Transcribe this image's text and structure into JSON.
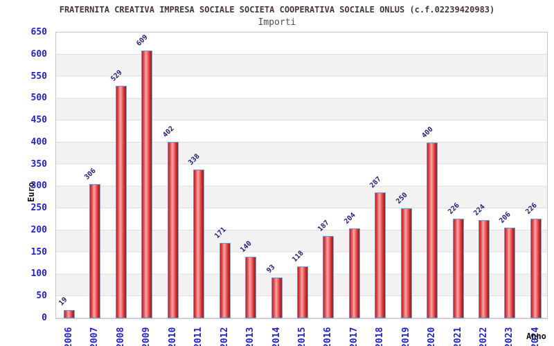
{
  "chart_data": {
    "type": "bar",
    "title": "FRATERNITA CREATIVA IMPRESA SOCIALE SOCIETA COOPERATIVA SOCIALE ONLUS (c.f.02239420983)",
    "subtitle": "Importi",
    "categories": [
      "2006",
      "2007",
      "2008",
      "2009",
      "2010",
      "2011",
      "2012",
      "2013",
      "2014",
      "2015",
      "2016",
      "2017",
      "2018",
      "2019",
      "2020",
      "2021",
      "2022",
      "2023",
      "2024"
    ],
    "values": [
      19,
      306,
      529,
      609,
      402,
      338,
      171,
      140,
      93,
      118,
      187,
      204,
      287,
      250,
      400,
      226,
      224,
      206,
      226
    ],
    "xlabel": "Anno",
    "ylabel": "Euro",
    "ylim": [
      0,
      650
    ],
    "ytick_step": 50,
    "grid": "horizontal, alternating gray bands every 50",
    "legend": "none",
    "colors": {
      "bar_fill": "#d83030",
      "bar_border": "#64a0e0",
      "tick_labels": "#2222cc",
      "value_labels": "#1f1f7a",
      "title": "#4a3535",
      "subtitle": "#4d4d4d",
      "band_gray": "#f2f2f2",
      "gridline": "#dedede",
      "frame": "#c6c6c6"
    }
  }
}
